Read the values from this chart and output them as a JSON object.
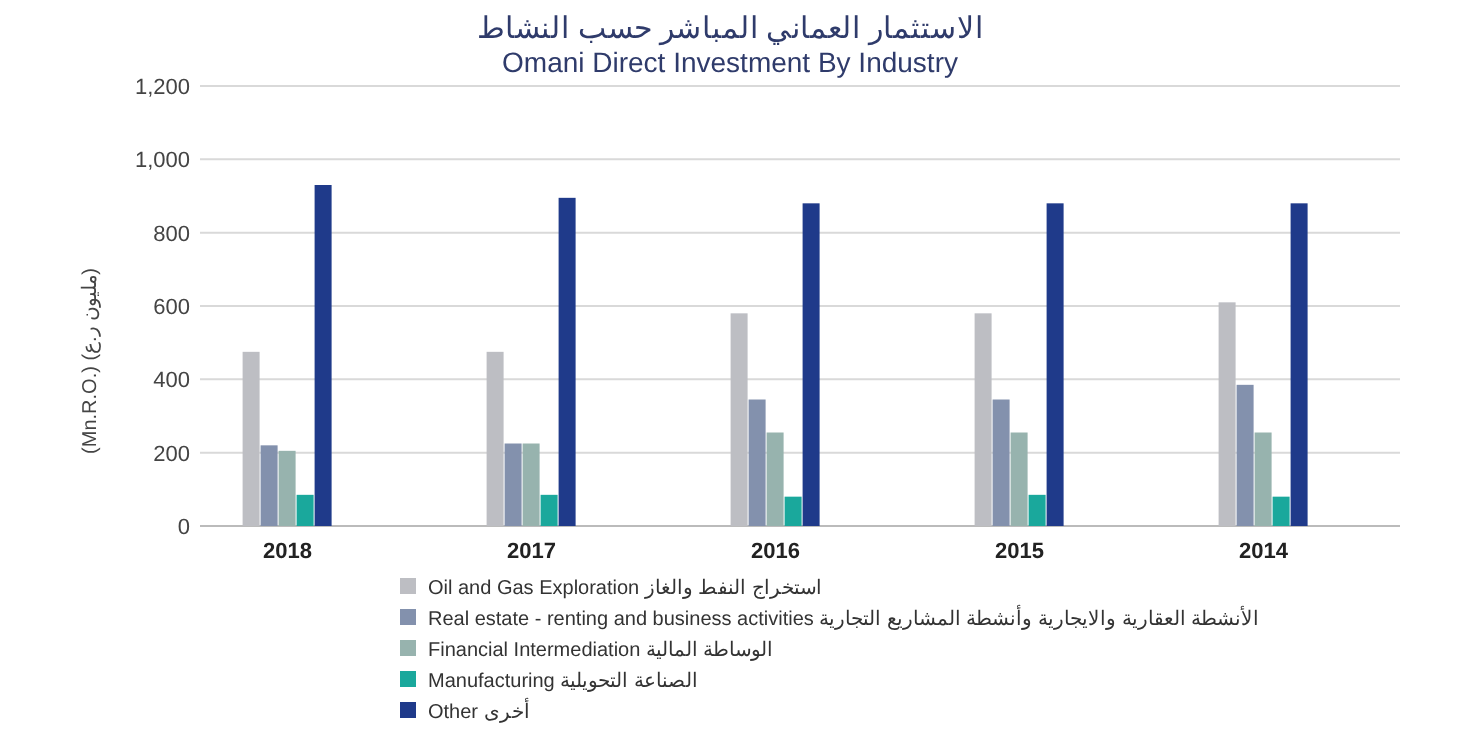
{
  "chart_data": {
    "type": "bar",
    "title": "الاستثمار العماني المباشر حسب النشاط",
    "subtitle": "Omani Direct Investment By Industry",
    "ylabel": "(Mn.R.O.) (مليون ر.ع)",
    "categories": [
      "2018",
      "2017",
      "2016",
      "2015",
      "2014"
    ],
    "series": [
      {
        "name": "Oil and Gas Exploration استخراج النفط والغاز",
        "color": "#bdbec3",
        "values": [
          475,
          475,
          580,
          580,
          610
        ]
      },
      {
        "name": "Real estate - renting and business activities الأنشطة العقارية والايجارية وأنشطة المشاريع التجارية",
        "color": "#8391ad",
        "values": [
          220,
          225,
          345,
          345,
          385
        ]
      },
      {
        "name": "Financial Intermediation الوساطة المالية",
        "color": "#97b3ae",
        "values": [
          205,
          225,
          255,
          255,
          255
        ]
      },
      {
        "name": "Manufacturing الصناعة التحويلية",
        "color": "#1aa89c",
        "values": [
          85,
          85,
          80,
          85,
          80
        ]
      },
      {
        "name": "Other أخرى",
        "color": "#1f3a8a",
        "values": [
          930,
          895,
          880,
          880,
          880
        ]
      }
    ],
    "ylim": [
      0,
      1200
    ],
    "yticks": [
      0,
      200,
      400,
      600,
      800,
      {
        "value": 1000,
        "label": "1,000"
      },
      {
        "value": 1200,
        "label": "1,200"
      }
    ],
    "grid": "y",
    "legend": "bottom"
  }
}
